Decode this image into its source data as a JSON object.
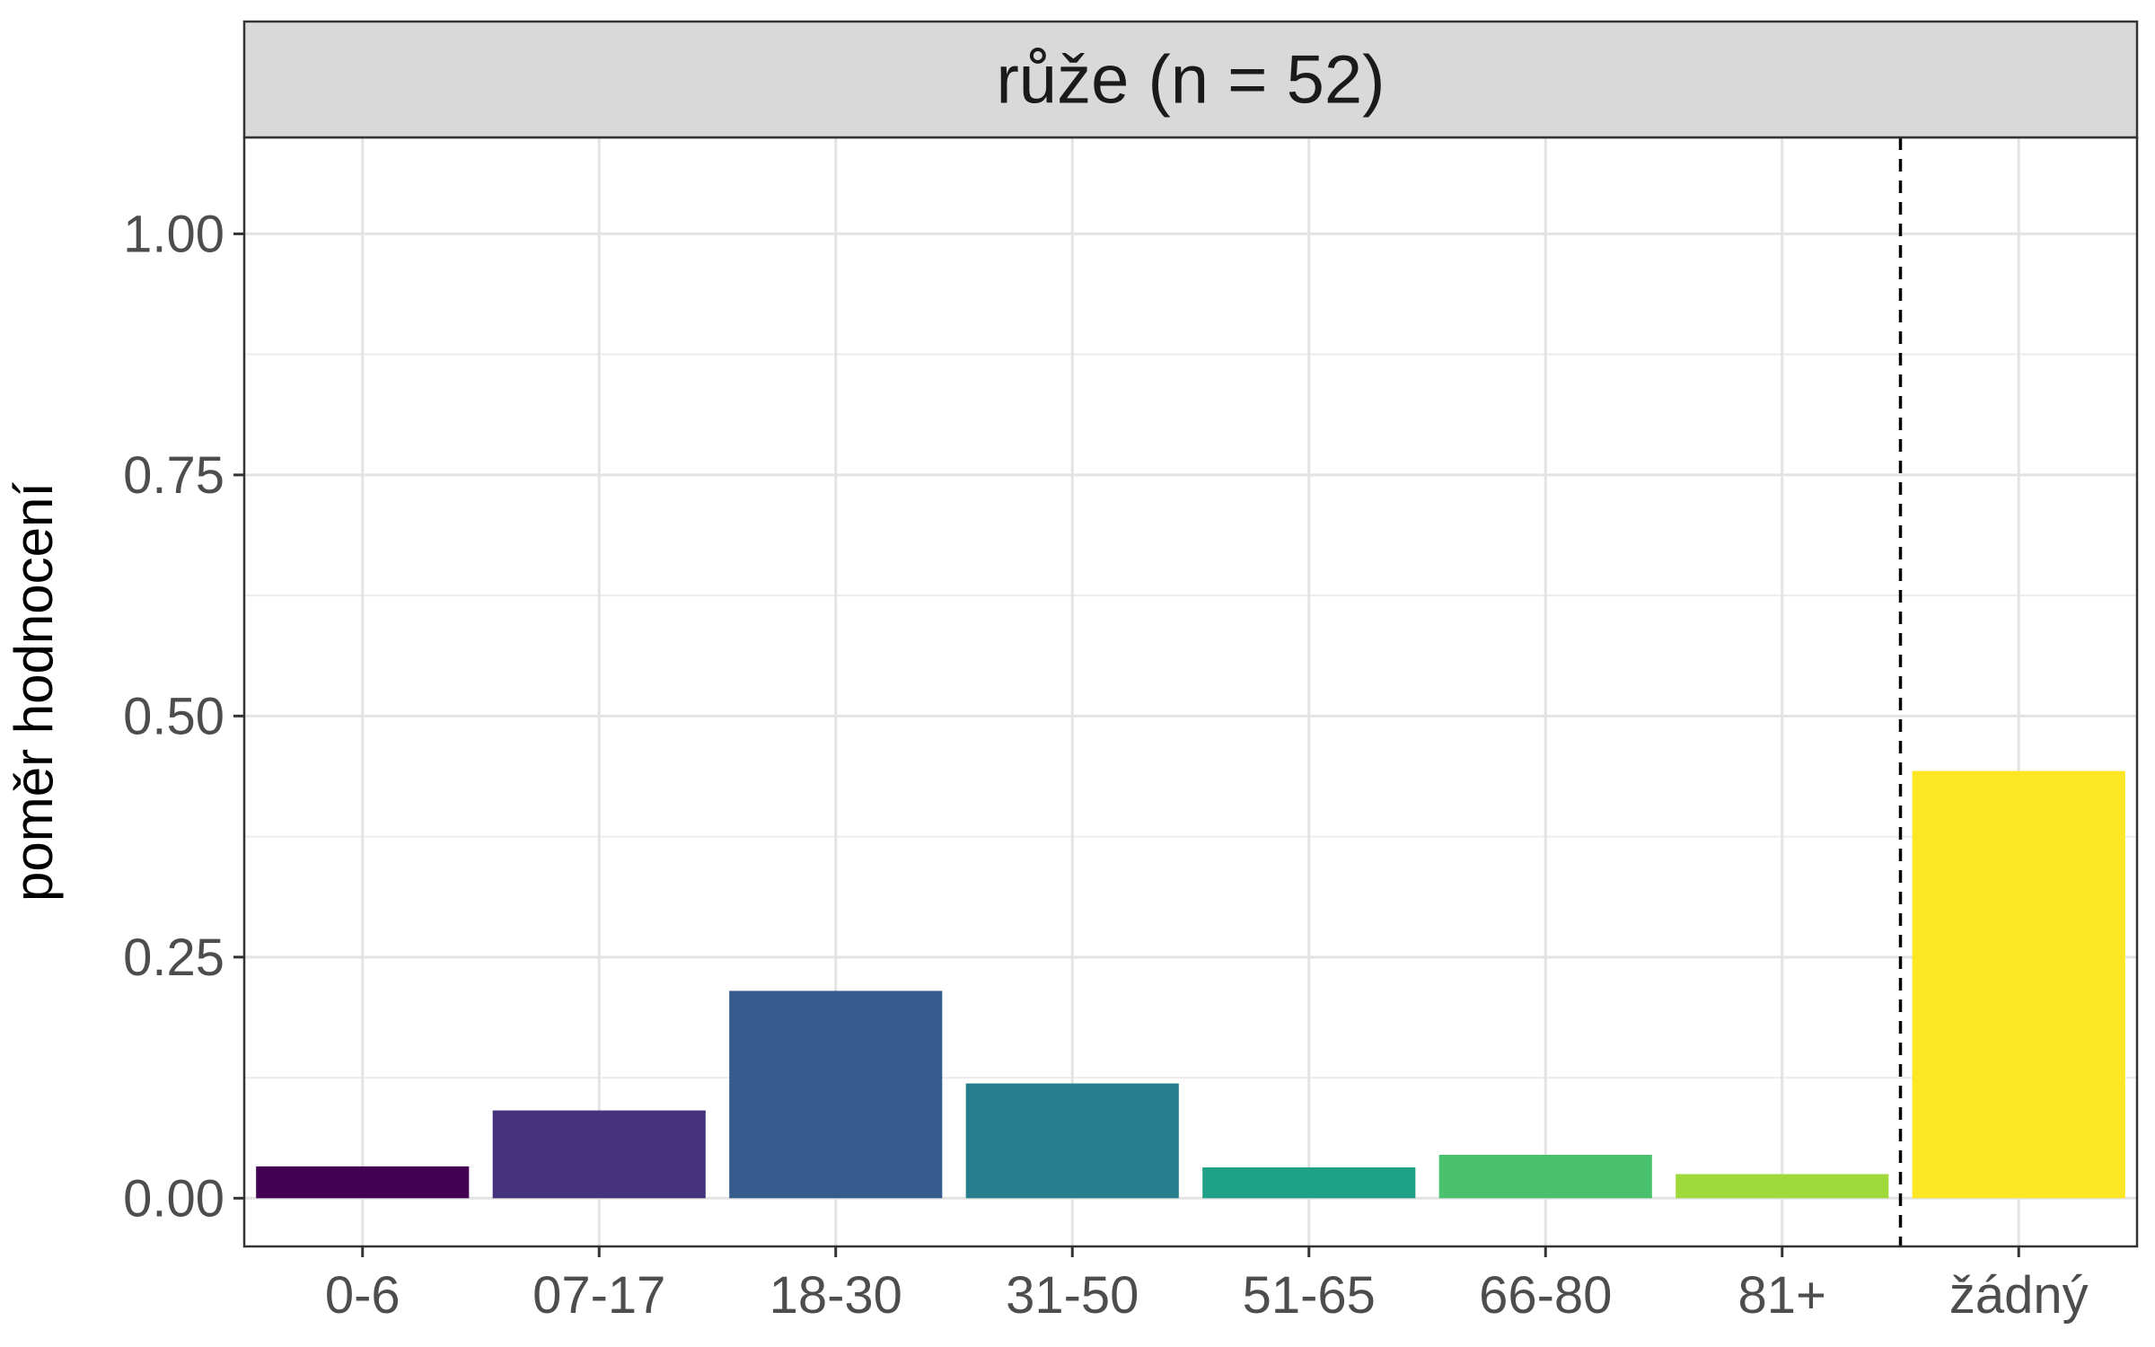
{
  "chart_data": {
    "type": "bar",
    "facet_title": "růže (n = 52)",
    "ylabel": "poměr hodnocení",
    "xlabel": "",
    "categories": [
      "0-6",
      "07-17",
      "18-30",
      "31-50",
      "51-65",
      "66-80",
      "81+",
      "žádný"
    ],
    "values": [
      0.033,
      0.091,
      0.215,
      0.119,
      0.032,
      0.045,
      0.025,
      0.443
    ],
    "colors": [
      "#440154",
      "#46337E",
      "#365C8D",
      "#277F8E",
      "#1FA187",
      "#4AC16D",
      "#9FDA3A",
      "#FDE725"
    ],
    "ylim": [
      -0.05,
      1.1
    ],
    "yticks": [
      0,
      0.25,
      0.5,
      0.75,
      1.0
    ],
    "ytick_labels": [
      "0.00",
      "0.25",
      "0.50",
      "0.75",
      "1.00"
    ],
    "reference_line": {
      "style": "dashed",
      "between": [
        "81+",
        "žádný"
      ]
    },
    "grid": true,
    "legend": "none"
  }
}
